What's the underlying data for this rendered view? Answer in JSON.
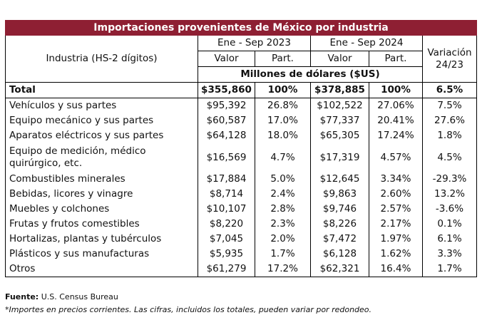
{
  "table": {
    "title": "Importaciones provenientes de México por industria",
    "col_industry": "Industria (HS-2 dígitos)",
    "period_2023": "Ene - Sep 2023",
    "period_2024": "Ene - Sep 2024",
    "valor_2023": "Valor",
    "part_2023": "Part.",
    "valor_2024": "Valor",
    "part_2024": "Part.",
    "variation": "Variación 24/23",
    "units": "Millones de dólares ($US)",
    "total": [
      "Total",
      "$355,860",
      "100%",
      "$378,885",
      "100%",
      "6.5%"
    ],
    "rows": [
      [
        "Vehículos y sus partes",
        "$95,392",
        "26.8%",
        "$102,522",
        "27.06%",
        "7.5%"
      ],
      [
        "Equipo mecánico y sus partes",
        "$60,587",
        "17.0%",
        "$77,337",
        "20.41%",
        "27.6%"
      ],
      [
        "Aparatos eléctricos y sus partes",
        "$64,128",
        "18.0%",
        "$65,305",
        "17.24%",
        "1.8%"
      ],
      [
        "Equipo de medición, médico quirúrgico, etc.",
        "$16,569",
        "4.7%",
        "$17,319",
        "4.57%",
        "4.5%"
      ],
      [
        "Combustibles minerales",
        "$17,884",
        "5.0%",
        "$12,645",
        "3.34%",
        "-29.3%"
      ],
      [
        "Bebidas, licores y vinagre",
        "$8,714",
        "2.4%",
        "$9,863",
        "2.60%",
        "13.2%"
      ],
      [
        "Muebles y colchones",
        "$10,107",
        "2.8%",
        "$9,746",
        "2.57%",
        "-3.6%"
      ],
      [
        "Frutas y frutos comestibles",
        "$8,220",
        "2.3%",
        "$8,226",
        "2.17%",
        "0.1%"
      ],
      [
        "Hortalizas, plantas y tubérculos",
        "$7,045",
        "2.0%",
        "$7,472",
        "1.97%",
        "6.1%"
      ],
      [
        "Plásticos y sus manufacturas",
        "$5,935",
        "1.7%",
        "$6,128",
        "1.62%",
        "3.3%"
      ],
      [
        "Otros",
        "$61,279",
        "17.2%",
        "$62,321",
        "16.4%",
        "1.7%"
      ]
    ]
  },
  "footer": {
    "source_label": "Fuente:",
    "source": "U.S. Census Bureau",
    "note": "*Importes en precios corrientes. Las cifras, incluidos los totales, pueden variar por redondeo."
  }
}
